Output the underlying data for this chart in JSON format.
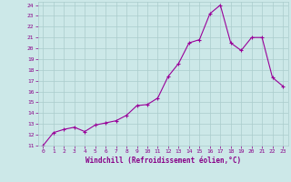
{
  "title": "",
  "xlabel": "Windchill (Refroidissement éolien,°C)",
  "ylabel": "",
  "x_values": [
    0,
    1,
    2,
    3,
    4,
    5,
    6,
    7,
    8,
    9,
    10,
    11,
    12,
    13,
    14,
    15,
    16,
    17,
    18,
    19,
    20,
    21,
    22,
    23
  ],
  "y_values": [
    11.0,
    12.2,
    12.5,
    12.7,
    12.3,
    12.9,
    13.1,
    13.3,
    13.8,
    14.7,
    14.8,
    15.4,
    17.4,
    18.6,
    20.5,
    20.8,
    23.2,
    24.0,
    20.5,
    19.8,
    21.0,
    21.0,
    17.3,
    16.5
  ],
  "line_color": "#990099",
  "marker": "+",
  "bg_color": "#cce8e8",
  "grid_color": "#aacccc",
  "tick_color": "#880088",
  "label_color": "#880088",
  "ylim_min": 11,
  "ylim_max": 24,
  "xlim_min": 0,
  "xlim_max": 23,
  "yticks": [
    11,
    12,
    13,
    14,
    15,
    16,
    17,
    18,
    19,
    20,
    21,
    22,
    23,
    24
  ],
  "xticks": [
    0,
    1,
    2,
    3,
    4,
    5,
    6,
    7,
    8,
    9,
    10,
    11,
    12,
    13,
    14,
    15,
    16,
    17,
    18,
    19,
    20,
    21,
    22,
    23
  ]
}
